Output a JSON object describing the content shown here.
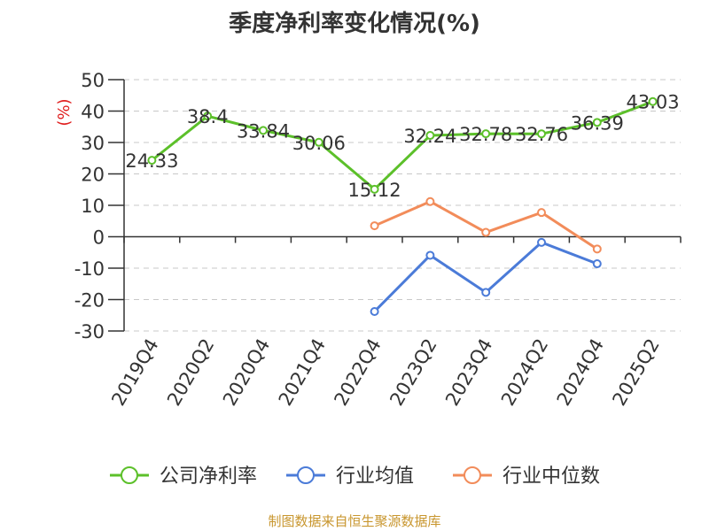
{
  "chart_data": {
    "type": "line",
    "title": "季度净利率变化情况(%)",
    "ylabel": "(%)",
    "ylim": [
      -30,
      50
    ],
    "yticks": [
      50,
      40,
      30,
      20,
      10,
      0,
      -10,
      -20,
      -30
    ],
    "grid": true,
    "legend_position": "bottom",
    "categories": [
      "2019Q4",
      "2020Q2",
      "2020Q4",
      "2021Q4",
      "2022Q4",
      "2023Q2",
      "2023Q4",
      "2024Q2",
      "2024Q4",
      "2025Q2"
    ],
    "series": [
      {
        "name": "公司净利率",
        "color": "#5cc02a",
        "values": [
          24.33,
          38.4,
          33.84,
          30.06,
          15.12,
          32.24,
          32.78,
          32.76,
          36.39,
          43.03
        ],
        "labels": [
          "24.33",
          "38.4",
          "33.84",
          "30.06",
          "15.12",
          "32.24",
          "32.78",
          "32.76",
          "36.39",
          "43.03"
        ]
      },
      {
        "name": "行业均值",
        "color": "#4b7bd8",
        "values": [
          null,
          null,
          null,
          null,
          -23.8,
          -5.9,
          -17.7,
          -1.8,
          -8.6,
          null
        ]
      },
      {
        "name": "行业中位数",
        "color": "#f28c5a",
        "values": [
          null,
          null,
          null,
          null,
          3.5,
          11.2,
          1.4,
          7.7,
          -3.9,
          null
        ]
      }
    ]
  },
  "footer": {
    "source": "制图数据来自恒生聚源数据库"
  }
}
